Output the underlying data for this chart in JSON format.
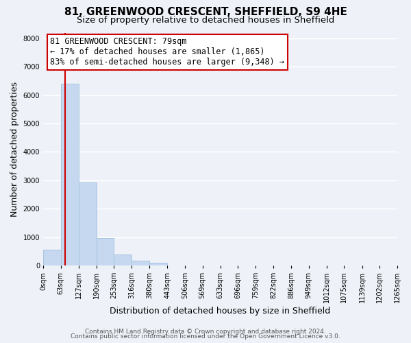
{
  "title": "81, GREENWOOD CRESCENT, SHEFFIELD, S9 4HE",
  "subtitle": "Size of property relative to detached houses in Sheffield",
  "xlabel": "Distribution of detached houses by size in Sheffield",
  "ylabel": "Number of detached properties",
  "bar_values": [
    550,
    6400,
    2920,
    970,
    380,
    175,
    90,
    0,
    0,
    0,
    0,
    0,
    0,
    0,
    0,
    0,
    0,
    0,
    0,
    0
  ],
  "bin_edges": [
    0,
    63,
    127,
    190,
    253,
    316,
    380,
    443,
    506,
    569,
    633,
    696,
    759,
    822,
    886,
    949,
    1012,
    1075,
    1139,
    1202,
    1265
  ],
  "tick_labels": [
    "0sqm",
    "63sqm",
    "127sqm",
    "190sqm",
    "253sqm",
    "316sqm",
    "380sqm",
    "443sqm",
    "506sqm",
    "569sqm",
    "633sqm",
    "696sqm",
    "759sqm",
    "822sqm",
    "886sqm",
    "949sqm",
    "1012sqm",
    "1075sqm",
    "1139sqm",
    "1202sqm",
    "1265sqm"
  ],
  "bar_color": "#c5d8f0",
  "bar_edgecolor": "#a8c4e0",
  "vline_x": 79,
  "vline_color": "#cc0000",
  "annotation_line1": "81 GREENWOOD CRESCENT: 79sqm",
  "annotation_line2": "← 17% of detached houses are smaller (1,865)",
  "annotation_line3": "83% of semi-detached houses are larger (9,348) →",
  "annotation_box_edgecolor": "#cc0000",
  "annotation_box_facecolor": "#ffffff",
  "ylim": [
    0,
    8200
  ],
  "yticks": [
    0,
    1000,
    2000,
    3000,
    4000,
    5000,
    6000,
    7000,
    8000
  ],
  "footer_line1": "Contains HM Land Registry data © Crown copyright and database right 2024.",
  "footer_line2": "Contains public sector information licensed under the Open Government Licence v3.0.",
  "bg_color": "#eef2f8",
  "grid_color": "#ffffff",
  "title_fontsize": 11,
  "subtitle_fontsize": 9.5,
  "axis_label_fontsize": 9,
  "tick_fontsize": 7,
  "annotation_fontsize": 8.5,
  "footer_fontsize": 6.5
}
